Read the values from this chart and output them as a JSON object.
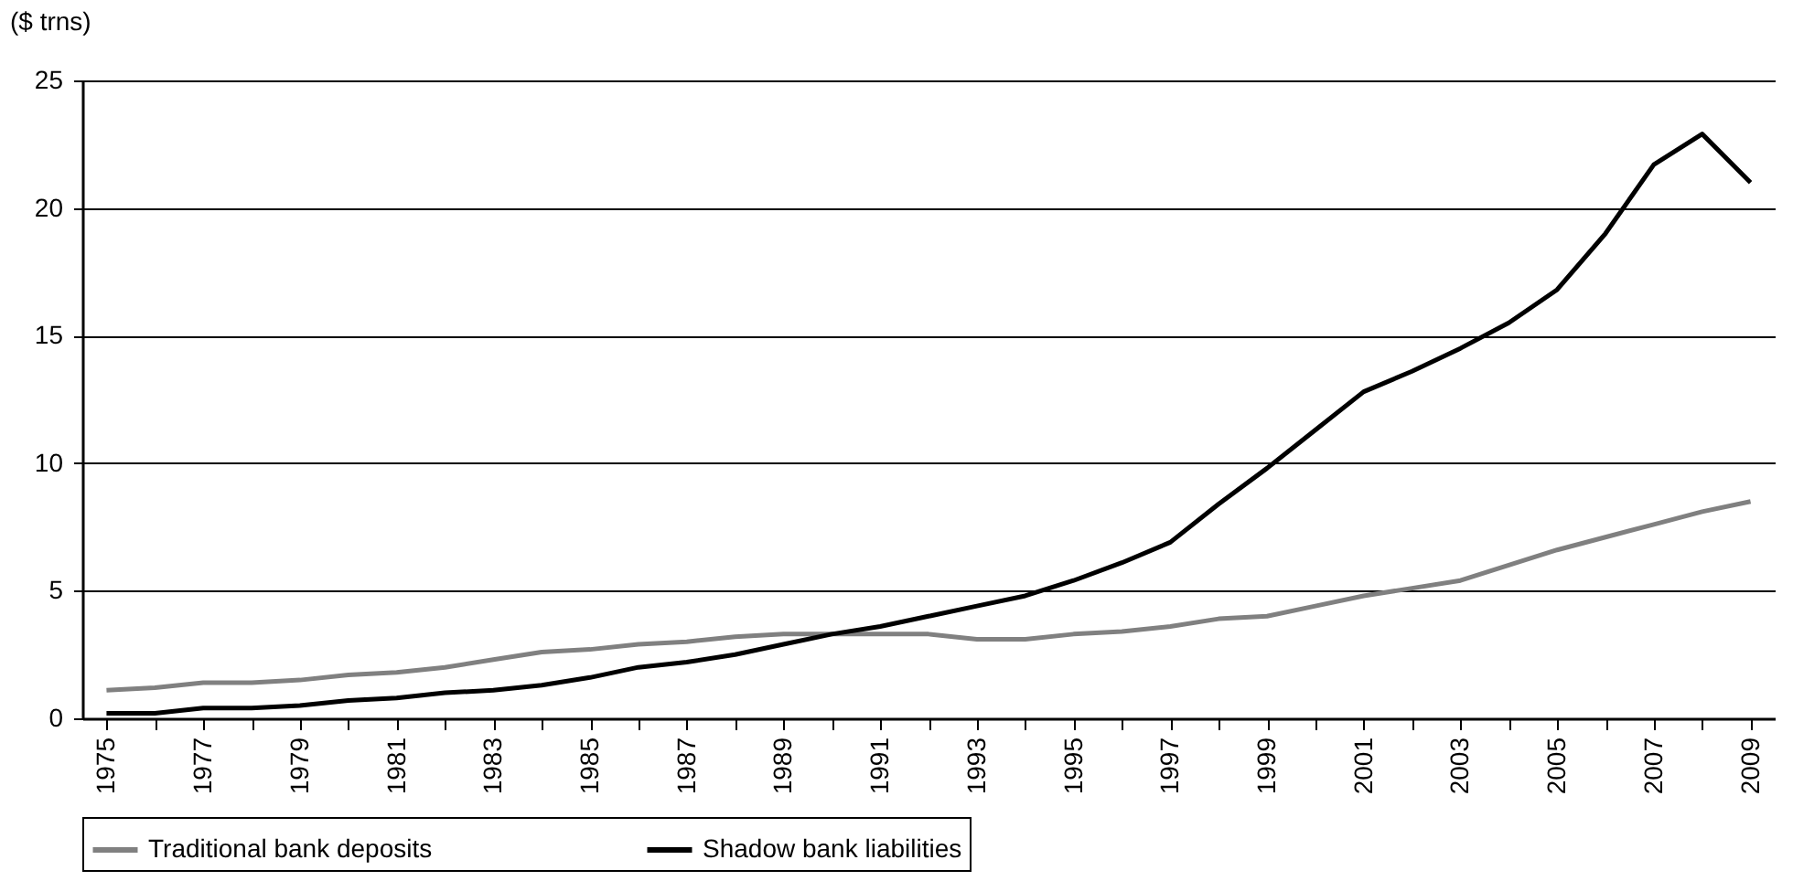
{
  "chart_data": {
    "type": "line",
    "ylabel": "($ trns)",
    "categories": [
      "1975",
      null,
      "1977",
      null,
      "1979",
      null,
      "1981",
      null,
      "1983",
      null,
      "1985",
      null,
      "1987",
      null,
      "1989",
      null,
      "1991",
      null,
      "1993",
      null,
      "1995",
      null,
      "1997",
      null,
      "1999",
      null,
      "2001",
      null,
      "2003",
      null,
      "2005",
      null,
      "2007",
      null,
      "2009"
    ],
    "series": [
      {
        "name": "Traditional bank deposits",
        "color": "#808080",
        "values": [
          1.1,
          1.2,
          1.4,
          1.4,
          1.5,
          1.7,
          1.8,
          2.0,
          2.3,
          2.6,
          2.7,
          2.9,
          3.0,
          3.2,
          3.3,
          3.3,
          3.3,
          3.3,
          3.1,
          3.1,
          3.3,
          3.4,
          3.6,
          3.9,
          4.0,
          4.4,
          4.8,
          5.1,
          5.4,
          6.0,
          6.6,
          7.1,
          7.6,
          8.1,
          8.5
        ]
      },
      {
        "name": "Shadow bank liabilities",
        "color": "#000000",
        "values": [
          0.2,
          0.2,
          0.4,
          0.4,
          0.5,
          0.7,
          0.8,
          1.0,
          1.1,
          1.3,
          1.6,
          2.0,
          2.2,
          2.5,
          2.9,
          3.3,
          3.6,
          4.0,
          4.4,
          4.8,
          5.4,
          6.1,
          6.9,
          8.4,
          9.8,
          11.3,
          12.8,
          13.6,
          14.5,
          15.5,
          16.8,
          19.0,
          21.7,
          22.9,
          21.0
        ]
      }
    ],
    "ylim": [
      0,
      25
    ],
    "yticks": [
      0,
      5,
      10,
      15,
      20,
      25
    ],
    "grid": "y",
    "legend": "bottom",
    "marker": "none",
    "line_style": "solid"
  }
}
